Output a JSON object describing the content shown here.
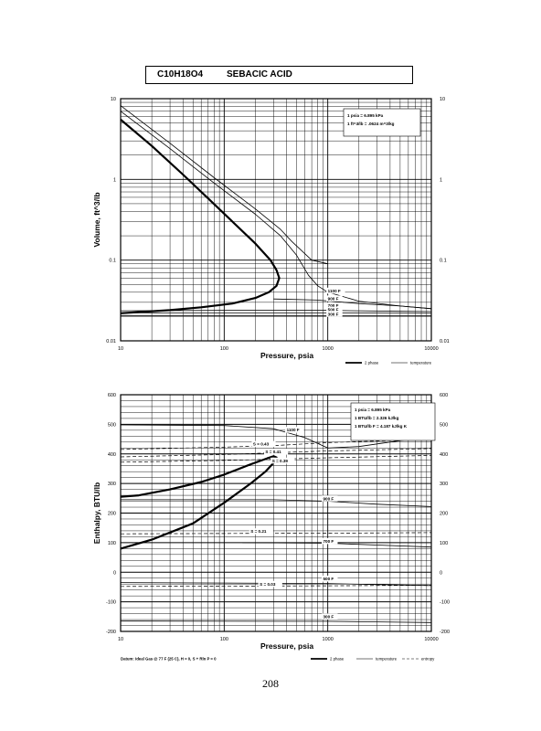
{
  "header": {
    "formula": "C10H18O4",
    "name": "SEBACIC ACID"
  },
  "page_number": "208",
  "chart_data": [
    {
      "type": "line",
      "xscale": "log",
      "yscale": "log",
      "xlim": [
        10,
        10000
      ],
      "ylim": [
        0.01,
        10
      ],
      "xlabel": "Pressure,  psia",
      "ylabel": "Volume, ft^3/lb",
      "x_ticks": [
        "10",
        "100",
        "1000",
        "10000"
      ],
      "y_ticks": [
        "0.01",
        "0.1",
        "1",
        "10"
      ],
      "conversion_notes": [
        "1 psia = 6.895 kPa",
        "1 ft^3/lb = .0624 m^3/kg"
      ],
      "legend": [
        "2 phase",
        "temperature"
      ],
      "series": [
        {
          "name": "2 phase",
          "points": [
            [
              10,
              5.5
            ],
            [
              20,
              2.6
            ],
            [
              40,
              1.15
            ],
            [
              70,
              0.58
            ],
            [
              120,
              0.3
            ],
            [
              200,
              0.16
            ],
            [
              280,
              0.1
            ],
            [
              320,
              0.075
            ],
            [
              340,
              0.06
            ],
            [
              320,
              0.048
            ],
            [
              270,
              0.04
            ],
            [
              200,
              0.034
            ],
            [
              120,
              0.029
            ],
            [
              60,
              0.026
            ],
            [
              30,
              0.024
            ],
            [
              10,
              0.022
            ]
          ]
        },
        {
          "name": "1100 F",
          "points": [
            [
              10,
              7.0
            ],
            [
              30,
              2.4
            ],
            [
              80,
              0.9
            ],
            [
              200,
              0.37
            ],
            [
              350,
              0.2
            ],
            [
              500,
              0.115
            ],
            [
              650,
              0.065
            ],
            [
              800,
              0.048
            ],
            [
              1000,
              0.04
            ],
            [
              2000,
              0.031
            ],
            [
              5000,
              0.027
            ],
            [
              10000,
              0.025
            ]
          ]
        },
        {
          "name": "",
          "points": [
            [
              10,
              8.2
            ],
            [
              30,
              2.8
            ],
            [
              80,
              1.05
            ],
            [
              200,
              0.43
            ],
            [
              350,
              0.24
            ],
            [
              450,
              0.17
            ],
            [
              700,
              0.1
            ],
            [
              1000,
              0.09
            ]
          ]
        },
        {
          "name": "900 F",
          "points": [
            [
              300,
              0.033
            ],
            [
              800,
              0.032
            ],
            [
              2000,
              0.029
            ],
            [
              5000,
              0.027
            ],
            [
              10000,
              0.025
            ]
          ]
        },
        {
          "name": "700 F",
          "points": [
            [
              10,
              0.0236
            ],
            [
              100,
              0.0238
            ],
            [
              1000,
              0.0238
            ],
            [
              5000,
              0.0232
            ],
            [
              10000,
              0.023
            ]
          ]
        },
        {
          "name": "500 F",
          "points": [
            [
              10,
              0.0222
            ],
            [
              1000,
              0.0222
            ],
            [
              10000,
              0.0219
            ]
          ]
        },
        {
          "name": "300 F",
          "points": [
            [
              10,
              0.0206
            ],
            [
              1000,
              0.0206
            ],
            [
              10000,
              0.0204
            ]
          ]
        }
      ],
      "curve_labels": [
        {
          "text": "1100 F",
          "x": 1000,
          "y": 0.04
        },
        {
          "text": "900 F",
          "x": 1000,
          "y": 0.032
        },
        {
          "text": "700 F",
          "x": 1000,
          "y": 0.0262
        },
        {
          "text": "500 F",
          "x": 1000,
          "y": 0.0232
        },
        {
          "text": "300 F",
          "x": 1000,
          "y": 0.0206
        }
      ]
    },
    {
      "type": "line",
      "xscale": "log",
      "yscale": "linear",
      "xlim": [
        10,
        10000
      ],
      "ylim": [
        -200,
        600
      ],
      "xlabel": "Pressure,  psia",
      "ylabel": "Enthalpy, BTU/lb",
      "x_ticks": [
        "10",
        "100",
        "1000",
        "10000"
      ],
      "y_ticks": [
        "600",
        "500",
        "400",
        "300",
        "200",
        "100",
        "0",
        "-100",
        "-200"
      ],
      "conversion_notes": [
        "1 psia = 6.895 kPa",
        "1 BTU/lb = 2.326 kJ/kg",
        "1 BTU/lb F = 4.187 kJ/kg K"
      ],
      "footnote": "Datum: Ideal Gas @ 77 F (25 C), H = 0, S + Rln P = 0",
      "legend": [
        "2 phase",
        "temperature",
        "entropy"
      ],
      "series": [
        {
          "name": "2 phase",
          "points": [
            [
              10,
              255
            ],
            [
              15,
              260
            ],
            [
              30,
              280
            ],
            [
              60,
              305
            ],
            [
              100,
              330
            ],
            [
              180,
              365
            ],
            [
              260,
              385
            ],
            [
              300,
              392
            ],
            [
              320,
              388
            ],
            [
              300,
              370
            ],
            [
              250,
              340
            ],
            [
              180,
              300
            ],
            [
              100,
              235
            ],
            [
              50,
              165
            ],
            [
              20,
              110
            ],
            [
              10,
              80
            ]
          ]
        },
        {
          "name": "1100 F",
          "points": [
            [
              10,
              498
            ],
            [
              100,
              496
            ],
            [
              300,
              485
            ],
            [
              600,
              455
            ],
            [
              1000,
              420
            ],
            [
              2000,
              425
            ],
            [
              5000,
              445
            ],
            [
              10000,
              460
            ]
          ]
        },
        {
          "name": "900 F",
          "points": [
            [
              10,
              245
            ],
            [
              300,
              245
            ],
            [
              1000,
              240
            ],
            [
              3000,
              230
            ],
            [
              10000,
              222
            ]
          ]
        },
        {
          "name": "700 F",
          "points": [
            [
              150,
              100
            ],
            [
              1000,
              98
            ],
            [
              3000,
              92
            ],
            [
              10000,
              85
            ]
          ]
        },
        {
          "name": "500 F",
          "points": [
            [
              10,
              -35
            ],
            [
              1000,
              -38
            ],
            [
              3000,
              -42
            ],
            [
              10000,
              -45
            ]
          ]
        },
        {
          "name": "300 F",
          "points": [
            [
              10,
              -165
            ],
            [
              1000,
              -166
            ],
            [
              3000,
              -168
            ],
            [
              10000,
              -170
            ]
          ]
        },
        {
          "name": "S = 0.43",
          "style": "dashed",
          "points": [
            [
              10,
              415
            ],
            [
              100,
              423
            ],
            [
              300,
              428
            ],
            [
              1000,
              438
            ],
            [
              10000,
              450
            ]
          ]
        },
        {
          "name": "S = 0.41",
          "style": "dashed",
          "points": [
            [
              10,
              390
            ],
            [
              100,
              398
            ],
            [
              300,
              404
            ],
            [
              1000,
              410
            ],
            [
              10000,
              418
            ]
          ]
        },
        {
          "name": "S = 0.39",
          "style": "dashed",
          "points": [
            [
              10,
              372
            ],
            [
              100,
              378
            ],
            [
              300,
              382
            ],
            [
              1000,
              387
            ],
            [
              10000,
              395
            ]
          ]
        },
        {
          "name": "S = 0.21",
          "style": "dashed",
          "points": [
            [
              10,
              130
            ],
            [
              1000,
              132
            ],
            [
              10000,
              134
            ]
          ]
        },
        {
          "name": "S = 0.03",
          "style": "dashed",
          "points": [
            [
              10,
              -48
            ],
            [
              1000,
              -46
            ],
            [
              10000,
              -44
            ]
          ]
        }
      ],
      "curve_labels": [
        {
          "text": "1100 F",
          "x": 400,
          "y": 476
        },
        {
          "text": "S = 0.43",
          "x": 190,
          "y": 428
        },
        {
          "text": "S = 0.41",
          "x": 250,
          "y": 402
        },
        {
          "text": "S = 0.39",
          "x": 290,
          "y": 372
        },
        {
          "text": "900 F",
          "x": 900,
          "y": 244
        },
        {
          "text": "S = 0.21",
          "x": 180,
          "y": 133
        },
        {
          "text": "700 F",
          "x": 900,
          "y": 100
        },
        {
          "text": "500 F",
          "x": 900,
          "y": -27
        },
        {
          "text": "S = 0.03",
          "x": 220,
          "y": -45
        },
        {
          "text": "300 F",
          "x": 900,
          "y": -155
        }
      ]
    }
  ]
}
